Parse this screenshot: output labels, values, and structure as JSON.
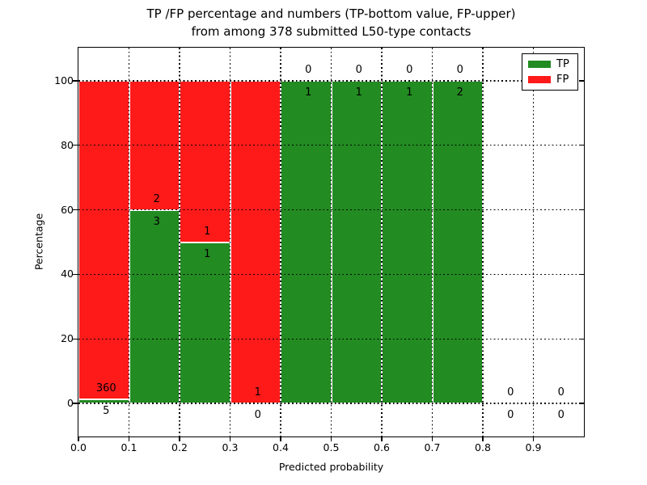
{
  "title": {
    "line1": "TP /FP percentage and numbers (TP-bottom value, FP-upper)",
    "line2": "from among 378 submitted L50-type contacts"
  },
  "axes": {
    "xlabel": "Predicted probability",
    "ylabel": "Percentage",
    "x_ticks": [
      "0.0",
      "0.1",
      "0.2",
      "0.3",
      "0.4",
      "0.5",
      "0.6",
      "0.7",
      "0.8",
      "0.9"
    ],
    "y_ticks": [
      "0",
      "20",
      "40",
      "60",
      "80",
      "100"
    ]
  },
  "legend": {
    "position": "upper right",
    "items": [
      {
        "label": "TP",
        "color": "#228B22"
      },
      {
        "label": "FP",
        "color": "#ff1a1a"
      }
    ]
  },
  "chart_data": {
    "type": "bar",
    "mode": "stacked-percentage",
    "title": "TP /FP percentage and numbers (TP-bottom value, FP-upper) from among 378 submitted L50-type contacts",
    "xlabel": "Predicted probability",
    "ylabel": "Percentage",
    "xlim": [
      0.0,
      1.0
    ],
    "ylim": [
      -11,
      110
    ],
    "grid": "dotted",
    "legend_position": "upper right",
    "total_submitted": 378,
    "bar_edge_color": "#ffffff",
    "y_tick_values": [
      0,
      20,
      40,
      60,
      80,
      100
    ],
    "x_tick_values": [
      0.0,
      0.1,
      0.2,
      0.3,
      0.4,
      0.5,
      0.6,
      0.7,
      0.8,
      0.9
    ],
    "bins": [
      {
        "x0": 0.0,
        "x1": 0.1,
        "tp": 5,
        "fp": 360,
        "tp_pct": 1.37,
        "fp_pct": 98.63
      },
      {
        "x0": 0.1,
        "x1": 0.2,
        "tp": 3,
        "fp": 2,
        "tp_pct": 60,
        "fp_pct": 40
      },
      {
        "x0": 0.2,
        "x1": 0.3,
        "tp": 1,
        "fp": 1,
        "tp_pct": 50,
        "fp_pct": 50
      },
      {
        "x0": 0.3,
        "x1": 0.4,
        "tp": 0,
        "fp": 1,
        "tp_pct": 0,
        "fp_pct": 100
      },
      {
        "x0": 0.4,
        "x1": 0.5,
        "tp": 1,
        "fp": 0,
        "tp_pct": 100,
        "fp_pct": 0
      },
      {
        "x0": 0.5,
        "x1": 0.6,
        "tp": 1,
        "fp": 0,
        "tp_pct": 100,
        "fp_pct": 0
      },
      {
        "x0": 0.6,
        "x1": 0.7,
        "tp": 1,
        "fp": 0,
        "tp_pct": 100,
        "fp_pct": 0
      },
      {
        "x0": 0.7,
        "x1": 0.8,
        "tp": 2,
        "fp": 0,
        "tp_pct": 100,
        "fp_pct": 0
      },
      {
        "x0": 0.8,
        "x1": 0.9,
        "tp": 0,
        "fp": 0,
        "tp_pct": null,
        "fp_pct": null
      },
      {
        "x0": 0.9,
        "x1": 1.0,
        "tp": 0,
        "fp": 0,
        "tp_pct": null,
        "fp_pct": null
      }
    ],
    "series": [
      {
        "name": "TP",
        "color": "#228B22",
        "counts": [
          5,
          3,
          1,
          0,
          1,
          1,
          1,
          2,
          0,
          0
        ]
      },
      {
        "name": "FP",
        "color": "#ff1a1a",
        "counts": [
          360,
          2,
          1,
          1,
          0,
          0,
          0,
          0,
          0,
          0
        ]
      }
    ]
  }
}
